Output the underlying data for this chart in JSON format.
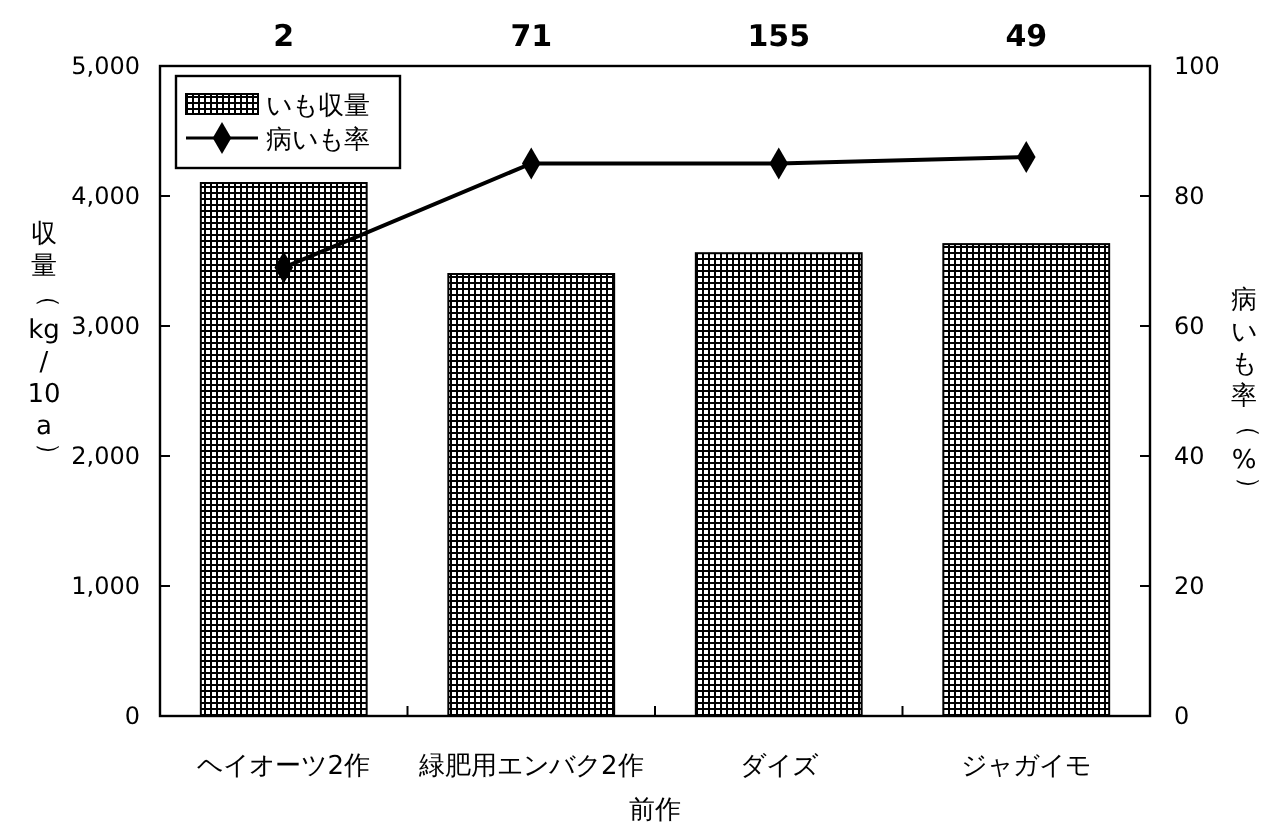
{
  "chart_data": {
    "type": "bar",
    "categories": [
      "ヘイオーツ2作",
      "緑肥用エンバク2作",
      "ダイズ",
      "ジャガイモ"
    ],
    "series": [
      {
        "name": "いも収量",
        "color": "#000000",
        "values": [
          4100,
          3400,
          3560,
          3630
        ]
      },
      {
        "name": "病いも率",
        "type": "line",
        "axis": "y2",
        "color": "#000000",
        "values": [
          69,
          85,
          85,
          86
        ]
      }
    ],
    "marker": "diamond",
    "xlabel": "前作",
    "ylabel": "収量（kg/10a）",
    "y2label": "病いも率（%）",
    "ylim": [
      0,
      5000
    ],
    "yticks": [
      0,
      {
        "value": 1000,
        "label": "1,000"
      },
      {
        "value": 2000,
        "label": "2,000"
      },
      {
        "value": 3000,
        "label": "3,000"
      },
      {
        "value": 4000,
        "label": "4,000"
      },
      {
        "value": 5000,
        "label": "5,000"
      }
    ],
    "y2lim": [
      0,
      100
    ],
    "y2ticks": [
      0,
      20,
      40,
      60,
      80,
      100
    ],
    "legend": "top left",
    "annotations": [
      "2",
      "71",
      "155",
      "49"
    ]
  }
}
